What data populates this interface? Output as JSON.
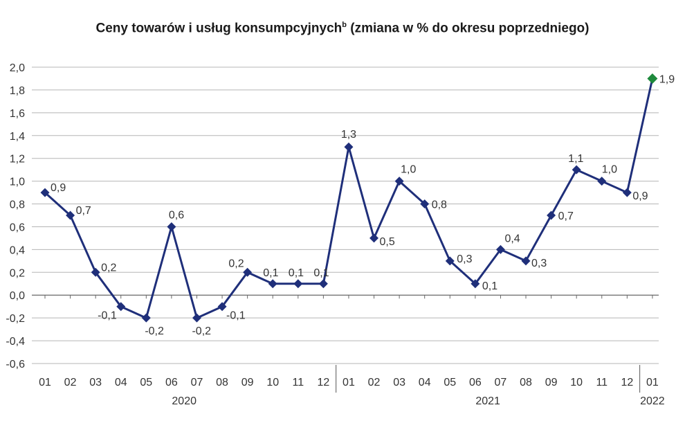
{
  "chart_data": {
    "type": "line",
    "title": "Ceny towarów i usług konsumpcyjnych",
    "title_superscript": "b",
    "title_suffix": " (zmiana w % do okresu poprzedniego)",
    "xlabel": "",
    "ylabel": "",
    "ylim": [
      -0.6,
      2.0
    ],
    "y_ticks": [
      "2,0",
      "1,8",
      "1,6",
      "1,4",
      "1,2",
      "1,0",
      "0,8",
      "0,6",
      "0,4",
      "0,2",
      "0,0",
      "-0,2",
      "-0,4",
      "-0,6"
    ],
    "grid": true,
    "categories": [
      "01",
      "02",
      "03",
      "04",
      "05",
      "06",
      "07",
      "08",
      "09",
      "10",
      "11",
      "12",
      "01",
      "02",
      "03",
      "04",
      "05",
      "06",
      "07",
      "08",
      "09",
      "10",
      "11",
      "12",
      "01"
    ],
    "years": [
      {
        "label": "2020",
        "start": 0,
        "end": 11
      },
      {
        "label": "2021",
        "start": 12,
        "end": 23
      },
      {
        "label": "2022",
        "start": 24,
        "end": 24
      }
    ],
    "series": [
      {
        "values": [
          0.9,
          0.7,
          0.2,
          -0.1,
          -0.2,
          0.6,
          -0.2,
          -0.1,
          0.2,
          0.1,
          0.1,
          0.1,
          1.3,
          0.5,
          1.0,
          0.8,
          0.3,
          0.1,
          0.4,
          0.3,
          0.7,
          1.1,
          1.0,
          0.9,
          1.9
        ],
        "labels": [
          "0,9",
          "0,7",
          "0,2",
          "-0,1",
          "-0,2",
          "0,6",
          "-0,2",
          "-0,1",
          "0,2",
          "0,1",
          "0,1",
          "0,1",
          "1,3",
          "0,5",
          "1,0",
          "0,8",
          "0,3",
          "0,1",
          "0,4",
          "0,3",
          "0,7",
          "1,1",
          "1,0",
          "0,9",
          "1,9"
        ],
        "color": "#1f2f7a",
        "highlight_color": "#1e8a3c",
        "highlight_index": 24
      }
    ]
  }
}
